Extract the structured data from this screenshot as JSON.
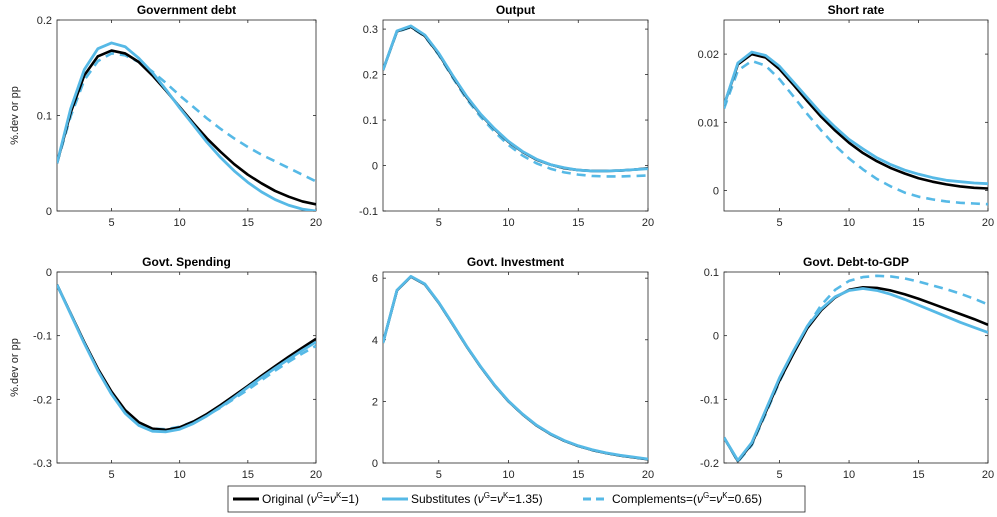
{
  "colors": {
    "original": "#000000",
    "substitutes": "#56b9e6",
    "complements": "#56b9e6",
    "axis": "#262626"
  },
  "legend": {
    "original": "Original (ν^G=ν^K=1)",
    "substitutes": "Substitutes (ν^G=ν^K=1.35)",
    "complements": "Complements=(ν^G=ν^K=0.65)",
    "placement": "bottom-center"
  },
  "chart_data": [
    {
      "type": "line",
      "title": "Government debt",
      "ylabel": "%.dev or pp",
      "xlim": [
        1,
        20
      ],
      "ylim": [
        0,
        0.2
      ],
      "xticks": [
        5,
        10,
        15,
        20
      ],
      "yticks": [
        0,
        0.1,
        0.2
      ],
      "x": [
        1,
        2,
        3,
        4,
        5,
        6,
        7,
        8,
        9,
        10,
        11,
        12,
        13,
        14,
        15,
        16,
        17,
        18,
        19,
        20
      ],
      "series": [
        {
          "name": "Original",
          "style": "solid-black",
          "values": [
            0.05,
            0.103,
            0.142,
            0.162,
            0.168,
            0.165,
            0.156,
            0.142,
            0.126,
            0.109,
            0.092,
            0.076,
            0.062,
            0.049,
            0.038,
            0.029,
            0.021,
            0.015,
            0.01,
            0.007
          ]
        },
        {
          "name": "Substitutes",
          "style": "solid-blue",
          "values": [
            0.05,
            0.107,
            0.148,
            0.17,
            0.176,
            0.172,
            0.16,
            0.145,
            0.127,
            0.108,
            0.09,
            0.072,
            0.056,
            0.042,
            0.03,
            0.02,
            0.012,
            0.006,
            0.002,
            0.0
          ]
        },
        {
          "name": "Complements",
          "style": "dashed-blue",
          "values": [
            0.05,
            0.099,
            0.137,
            0.157,
            0.165,
            0.163,
            0.156,
            0.146,
            0.134,
            0.121,
            0.109,
            0.097,
            0.086,
            0.076,
            0.067,
            0.059,
            0.052,
            0.045,
            0.038,
            0.031
          ]
        }
      ]
    },
    {
      "type": "line",
      "title": "Output",
      "ylabel": "",
      "xlim": [
        1,
        20
      ],
      "ylim": [
        -0.1,
        0.32
      ],
      "xticks": [
        5,
        10,
        15,
        20
      ],
      "yticks": [
        -0.1,
        0,
        0.1,
        0.2,
        0.3
      ],
      "x": [
        1,
        2,
        3,
        4,
        5,
        6,
        7,
        8,
        9,
        10,
        11,
        12,
        13,
        14,
        15,
        16,
        17,
        18,
        19,
        20
      ],
      "series": [
        {
          "name": "Original",
          "style": "solid-black",
          "values": [
            0.21,
            0.295,
            0.305,
            0.285,
            0.245,
            0.196,
            0.15,
            0.112,
            0.08,
            0.052,
            0.03,
            0.013,
            0.002,
            -0.006,
            -0.01,
            -0.012,
            -0.012,
            -0.011,
            -0.009,
            -0.006
          ]
        },
        {
          "name": "Substitutes",
          "style": "solid-blue",
          "values": [
            0.21,
            0.296,
            0.307,
            0.287,
            0.247,
            0.198,
            0.152,
            0.113,
            0.081,
            0.053,
            0.031,
            0.014,
            0.002,
            -0.005,
            -0.01,
            -0.012,
            -0.012,
            -0.011,
            -0.009,
            -0.007
          ]
        },
        {
          "name": "Complements",
          "style": "dashed-blue",
          "values": [
            0.21,
            0.294,
            0.304,
            0.284,
            0.243,
            0.193,
            0.146,
            0.107,
            0.074,
            0.045,
            0.022,
            0.005,
            -0.007,
            -0.015,
            -0.02,
            -0.023,
            -0.024,
            -0.024,
            -0.023,
            -0.022
          ]
        }
      ]
    },
    {
      "type": "line",
      "title": "Short rate",
      "ylabel": "",
      "xlim": [
        1,
        20
      ],
      "ylim": [
        -0.003,
        0.025
      ],
      "xticks": [
        5,
        10,
        15,
        20
      ],
      "yticks": [
        0,
        0.01,
        0.02
      ],
      "x": [
        1,
        2,
        3,
        4,
        5,
        6,
        7,
        8,
        9,
        10,
        11,
        12,
        13,
        14,
        15,
        16,
        17,
        18,
        19,
        20
      ],
      "series": [
        {
          "name": "Original",
          "style": "solid-black",
          "values": [
            0.0125,
            0.0185,
            0.02,
            0.0195,
            0.0178,
            0.0155,
            0.0131,
            0.0108,
            0.0088,
            0.007,
            0.0055,
            0.0043,
            0.0033,
            0.0025,
            0.0018,
            0.0013,
            0.0009,
            0.0006,
            0.0004,
            0.0003
          ]
        },
        {
          "name": "Substitutes",
          "style": "solid-blue",
          "values": [
            0.0125,
            0.0187,
            0.0203,
            0.0198,
            0.0182,
            0.0159,
            0.0136,
            0.0113,
            0.0093,
            0.0075,
            0.0061,
            0.0048,
            0.0038,
            0.003,
            0.0024,
            0.0019,
            0.0015,
            0.0013,
            0.0011,
            0.001
          ]
        },
        {
          "name": "Complements",
          "style": "dashed-blue",
          "values": [
            0.012,
            0.0176,
            0.019,
            0.0183,
            0.0163,
            0.0138,
            0.0112,
            0.0088,
            0.0066,
            0.0047,
            0.0031,
            0.0017,
            0.0006,
            -0.0003,
            -0.0009,
            -0.0013,
            -0.0016,
            -0.0018,
            -0.0019,
            -0.002
          ]
        }
      ]
    },
    {
      "type": "line",
      "title": "Govt. Spending",
      "ylabel": "%.dev or pp",
      "xlim": [
        1,
        20
      ],
      "ylim": [
        -0.3,
        0
      ],
      "xticks": [
        5,
        10,
        15,
        20
      ],
      "yticks": [
        -0.3,
        -0.2,
        -0.1,
        0
      ],
      "x": [
        1,
        2,
        3,
        4,
        5,
        6,
        7,
        8,
        9,
        10,
        11,
        12,
        13,
        14,
        15,
        16,
        17,
        18,
        19,
        20
      ],
      "series": [
        {
          "name": "Original",
          "style": "solid-black",
          "values": [
            -0.02,
            -0.065,
            -0.11,
            -0.152,
            -0.188,
            -0.217,
            -0.236,
            -0.246,
            -0.248,
            -0.244,
            -0.235,
            -0.223,
            -0.209,
            -0.194,
            -0.179,
            -0.163,
            -0.148,
            -0.133,
            -0.119,
            -0.105
          ]
        },
        {
          "name": "Substitutes",
          "style": "solid-blue",
          "values": [
            -0.02,
            -0.066,
            -0.112,
            -0.155,
            -0.192,
            -0.222,
            -0.241,
            -0.25,
            -0.251,
            -0.247,
            -0.238,
            -0.226,
            -0.212,
            -0.197,
            -0.181,
            -0.166,
            -0.151,
            -0.137,
            -0.123,
            -0.11
          ]
        },
        {
          "name": "Complements",
          "style": "dashed-blue",
          "values": [
            -0.02,
            -0.065,
            -0.111,
            -0.153,
            -0.189,
            -0.218,
            -0.237,
            -0.246,
            -0.247,
            -0.243,
            -0.235,
            -0.225,
            -0.213,
            -0.199,
            -0.185,
            -0.17,
            -0.155,
            -0.141,
            -0.128,
            -0.116
          ]
        }
      ]
    },
    {
      "type": "line",
      "title": "Govt. Investment",
      "ylabel": "",
      "xlim": [
        1,
        20
      ],
      "ylim": [
        0,
        6.2
      ],
      "xticks": [
        5,
        10,
        15,
        20
      ],
      "yticks": [
        0,
        2,
        4,
        6
      ],
      "x": [
        1,
        2,
        3,
        4,
        5,
        6,
        7,
        8,
        9,
        10,
        11,
        12,
        13,
        14,
        15,
        16,
        17,
        18,
        19,
        20
      ],
      "series": [
        {
          "name": "Original",
          "style": "solid-black",
          "values": [
            3.9,
            5.6,
            6.05,
            5.8,
            5.2,
            4.5,
            3.78,
            3.12,
            2.52,
            2.0,
            1.58,
            1.22,
            0.94,
            0.72,
            0.55,
            0.42,
            0.32,
            0.24,
            0.18,
            0.12
          ]
        },
        {
          "name": "Substitutes",
          "style": "solid-blue",
          "values": [
            3.9,
            5.61,
            6.06,
            5.81,
            5.21,
            4.51,
            3.79,
            3.13,
            2.53,
            2.01,
            1.59,
            1.23,
            0.95,
            0.73,
            0.56,
            0.43,
            0.33,
            0.25,
            0.19,
            0.13
          ]
        },
        {
          "name": "Complements",
          "style": "dashed-blue",
          "values": [
            3.9,
            5.6,
            6.05,
            5.8,
            5.2,
            4.5,
            3.78,
            3.12,
            2.52,
            2.0,
            1.58,
            1.22,
            0.94,
            0.72,
            0.55,
            0.42,
            0.32,
            0.24,
            0.18,
            0.12
          ]
        }
      ]
    },
    {
      "type": "line",
      "title": "Govt. Debt-to-GDP",
      "ylabel": "",
      "xlim": [
        1,
        20
      ],
      "ylim": [
        -0.2,
        0.1
      ],
      "xticks": [
        5,
        10,
        15,
        20
      ],
      "yticks": [
        -0.2,
        -0.1,
        0,
        0.1
      ],
      "x": [
        1,
        2,
        3,
        4,
        5,
        6,
        7,
        8,
        9,
        10,
        11,
        12,
        13,
        14,
        15,
        16,
        17,
        18,
        19,
        20
      ],
      "series": [
        {
          "name": "Original",
          "style": "solid-black",
          "values": [
            -0.16,
            -0.197,
            -0.17,
            -0.12,
            -0.07,
            -0.028,
            0.012,
            0.04,
            0.06,
            0.072,
            0.076,
            0.075,
            0.071,
            0.065,
            0.058,
            0.05,
            0.042,
            0.034,
            0.026,
            0.017
          ]
        },
        {
          "name": "Substitutes",
          "style": "solid-blue",
          "values": [
            -0.16,
            -0.196,
            -0.168,
            -0.117,
            -0.066,
            -0.024,
            0.015,
            0.042,
            0.061,
            0.071,
            0.074,
            0.071,
            0.065,
            0.057,
            0.048,
            0.039,
            0.03,
            0.021,
            0.013,
            0.005
          ]
        },
        {
          "name": "Complements",
          "style": "dashed-blue",
          "values": [
            -0.16,
            -0.198,
            -0.172,
            -0.123,
            -0.072,
            -0.027,
            0.015,
            0.048,
            0.072,
            0.086,
            0.092,
            0.094,
            0.093,
            0.09,
            0.085,
            0.079,
            0.073,
            0.066,
            0.058,
            0.049
          ]
        }
      ]
    }
  ]
}
